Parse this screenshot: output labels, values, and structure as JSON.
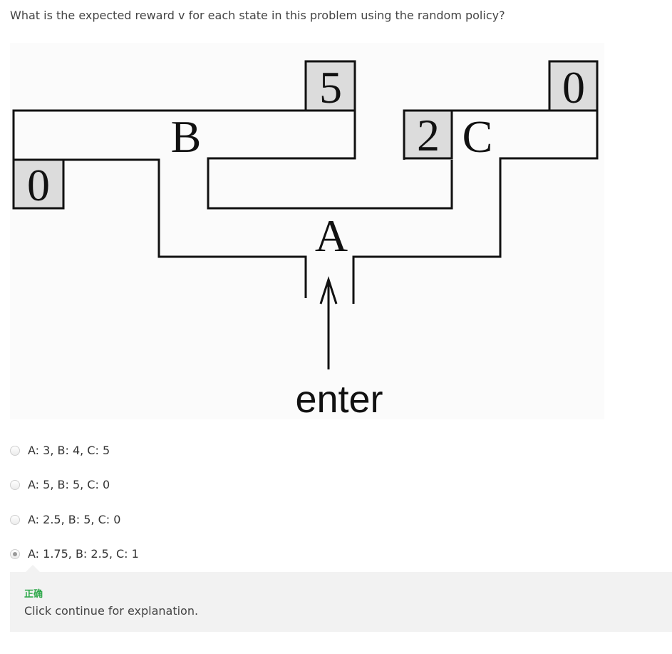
{
  "question": "What is the expected reward v for each state in this problem using the random policy?",
  "figure": {
    "state_labels": {
      "a": "A",
      "b": "B",
      "c": "C"
    },
    "rewards": {
      "top_middle": "5",
      "top_right": "0",
      "left": "0",
      "c_box": "2"
    },
    "enter_label": "enter"
  },
  "options": [
    {
      "label": "A: 3, B: 4, C: 5",
      "selected": false
    },
    {
      "label": "A: 5, B: 5, C: 0",
      "selected": false
    },
    {
      "label": "A: 2.5, B: 5, C: 0",
      "selected": false
    },
    {
      "label": "A: 1.75, B: 2.5, C: 1",
      "selected": true
    }
  ],
  "feedback": {
    "status": "正确",
    "status_color": "#2ea84a",
    "message": "Click continue for explanation."
  }
}
